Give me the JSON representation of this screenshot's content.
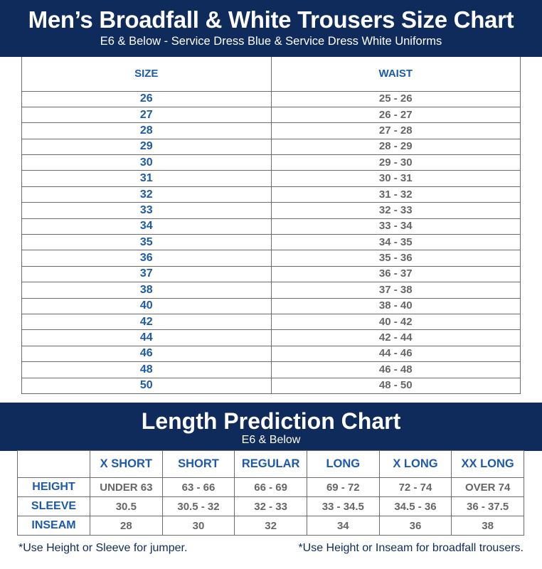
{
  "header": {
    "title": "Men’s Broadfall & White Trousers Size Chart",
    "subtitle": "E6 & Below - Service Dress Blue & Service Dress White Uniforms"
  },
  "size_chart": {
    "columns": [
      "SIZE",
      "WAIST"
    ],
    "rows": [
      {
        "size": "26",
        "waist": "25 - 26"
      },
      {
        "size": "27",
        "waist": "26 - 27"
      },
      {
        "size": "28",
        "waist": "27 - 28"
      },
      {
        "size": "29",
        "waist": "28 - 29"
      },
      {
        "size": "30",
        "waist": "29 - 30"
      },
      {
        "size": "31",
        "waist": "30 - 31"
      },
      {
        "size": "32",
        "waist": "31 - 32"
      },
      {
        "size": "33",
        "waist": "32 - 33"
      },
      {
        "size": "34",
        "waist": "33 - 34"
      },
      {
        "size": "35",
        "waist": "34 - 35"
      },
      {
        "size": "36",
        "waist": "35 - 36"
      },
      {
        "size": "37",
        "waist": "36 - 37"
      },
      {
        "size": "38",
        "waist": "37 - 38"
      },
      {
        "size": "40",
        "waist": "38 - 40"
      },
      {
        "size": "42",
        "waist": "40 - 42"
      },
      {
        "size": "44",
        "waist": "42 - 44"
      },
      {
        "size": "46",
        "waist": "44 - 46"
      },
      {
        "size": "48",
        "waist": "46 - 48"
      },
      {
        "size": "50",
        "waist": "48 - 50"
      }
    ]
  },
  "length_header": {
    "title": "Length Prediction Chart",
    "subtitle": "E6 & Below"
  },
  "length_chart": {
    "columns": [
      "X SHORT",
      "SHORT",
      "REGULAR",
      "LONG",
      "X LONG",
      "XX LONG"
    ],
    "rows": [
      {
        "label": "HEIGHT",
        "values": [
          "UNDER 63",
          "63 - 66",
          "66 - 69",
          "69 - 72",
          "72 - 74",
          "OVER 74"
        ]
      },
      {
        "label": "SLEEVE",
        "values": [
          "30.5",
          "30.5 - 32",
          "32 - 33",
          "33 - 34.5",
          "34.5 - 36",
          "36 - 37.5"
        ]
      },
      {
        "label": "INSEAM",
        "values": [
          "28",
          "30",
          "32",
          "34",
          "36",
          "38"
        ]
      }
    ]
  },
  "notes": {
    "left": "*Use Height or Sleeve for jumper.",
    "right": "*Use Height or Inseam for broadfall trousers."
  },
  "colors": {
    "banner": "#0f2b5b",
    "accent_blue": "#1d5aa8",
    "value_gray": "#666666"
  }
}
